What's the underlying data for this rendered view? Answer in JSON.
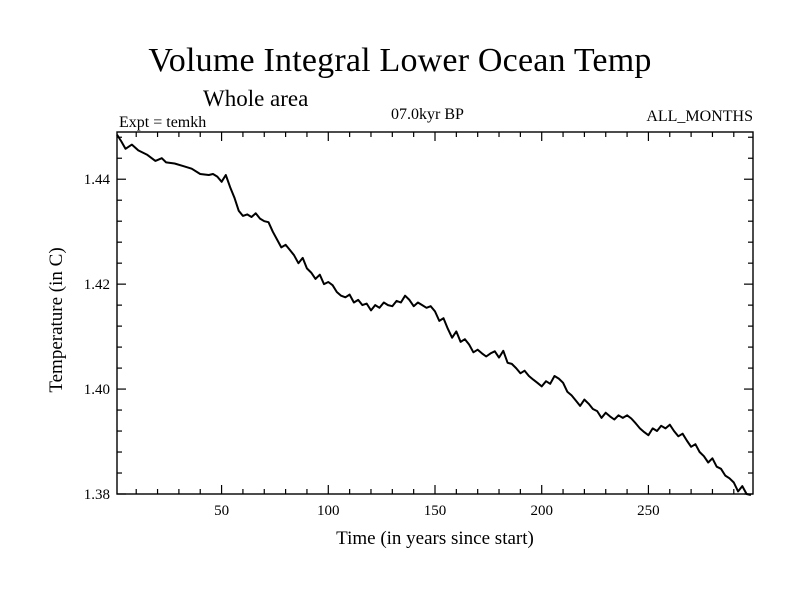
{
  "chart_data": {
    "type": "line",
    "title": "Volume Integral Lower Ocean Temp",
    "subtitle": "Whole area",
    "experiment": "Expt = temkh",
    "period": "07.0kyr BP",
    "months": "ALL_MONTHS",
    "xlabel": "Time (in years since start)",
    "ylabel": "Temperature (in C)",
    "xlim": [
      1,
      299
    ],
    "ylim": [
      1.38,
      1.449
    ],
    "grid": false,
    "xticks": [
      50,
      100,
      150,
      200,
      250
    ],
    "xtick_labels": [
      "50",
      "100",
      "150",
      "200",
      "250"
    ],
    "yticks": [
      1.38,
      1.4,
      1.42,
      1.44
    ],
    "ytick_labels": [
      "1.38",
      "1.40",
      "1.42",
      "1.44"
    ],
    "series": [
      {
        "name": "Volume Integral Lower Ocean Temp",
        "x": [
          1,
          3,
          5,
          8,
          11,
          15,
          19,
          22,
          24,
          28,
          32,
          36,
          40,
          44,
          46,
          48,
          50,
          52,
          54,
          56,
          58,
          60,
          62,
          64,
          66,
          68,
          70,
          72,
          74,
          76,
          78,
          80,
          82,
          84,
          86,
          88,
          90,
          92,
          94,
          96,
          98,
          100,
          102,
          104,
          106,
          108,
          110,
          112,
          114,
          116,
          118,
          120,
          122,
          124,
          126,
          128,
          130,
          132,
          134,
          136,
          138,
          140,
          142,
          144,
          146,
          148,
          150,
          152,
          154,
          156,
          158,
          160,
          162,
          164,
          166,
          168,
          170,
          172,
          174,
          176,
          178,
          180,
          182,
          184,
          186,
          188,
          190,
          192,
          194,
          196,
          198,
          200,
          202,
          204,
          206,
          208,
          210,
          212,
          214,
          216,
          218,
          220,
          222,
          224,
          226,
          228,
          230,
          232,
          234,
          236,
          238,
          240,
          242,
          244,
          246,
          248,
          250,
          252,
          254,
          256,
          258,
          260,
          262,
          264,
          266,
          268,
          270,
          272,
          274,
          276,
          278,
          280,
          282,
          284,
          286,
          288,
          290,
          292,
          294,
          296,
          298
        ],
        "y": [
          1.4485,
          1.4472,
          1.4458,
          1.4466,
          1.4455,
          1.4447,
          1.4435,
          1.444,
          1.4432,
          1.443,
          1.4425,
          1.442,
          1.441,
          1.4408,
          1.441,
          1.4405,
          1.4395,
          1.4408,
          1.4385,
          1.4365,
          1.434,
          1.433,
          1.4333,
          1.4328,
          1.4335,
          1.4325,
          1.432,
          1.4318,
          1.43,
          1.4285,
          1.427,
          1.4275,
          1.4265,
          1.4255,
          1.424,
          1.425,
          1.423,
          1.4222,
          1.421,
          1.4218,
          1.42,
          1.4204,
          1.4198,
          1.4185,
          1.4178,
          1.4175,
          1.418,
          1.4165,
          1.417,
          1.416,
          1.4163,
          1.415,
          1.416,
          1.4155,
          1.4165,
          1.416,
          1.4158,
          1.4168,
          1.4165,
          1.4178,
          1.417,
          1.4158,
          1.4165,
          1.416,
          1.4155,
          1.4158,
          1.4148,
          1.413,
          1.4135,
          1.4115,
          1.4098,
          1.411,
          1.409,
          1.4095,
          1.4085,
          1.407,
          1.4075,
          1.4068,
          1.4062,
          1.4068,
          1.4072,
          1.406,
          1.4073,
          1.405,
          1.4048,
          1.404,
          1.403,
          1.4035,
          1.4025,
          1.4018,
          1.4012,
          1.4005,
          1.4015,
          1.401,
          1.4025,
          1.402,
          1.4012,
          1.3995,
          1.3988,
          1.3978,
          1.3968,
          1.398,
          1.3972,
          1.3962,
          1.3958,
          1.3945,
          1.3955,
          1.3948,
          1.3942,
          1.395,
          1.3945,
          1.395,
          1.3944,
          1.3935,
          1.3925,
          1.3918,
          1.3912,
          1.3925,
          1.392,
          1.393,
          1.3925,
          1.3932,
          1.392,
          1.391,
          1.3915,
          1.3902,
          1.389,
          1.3895,
          1.388,
          1.3872,
          1.386,
          1.3868,
          1.3852,
          1.3848,
          1.3835,
          1.383,
          1.3822,
          1.3805,
          1.3815,
          1.38,
          1.3798
        ]
      }
    ]
  }
}
